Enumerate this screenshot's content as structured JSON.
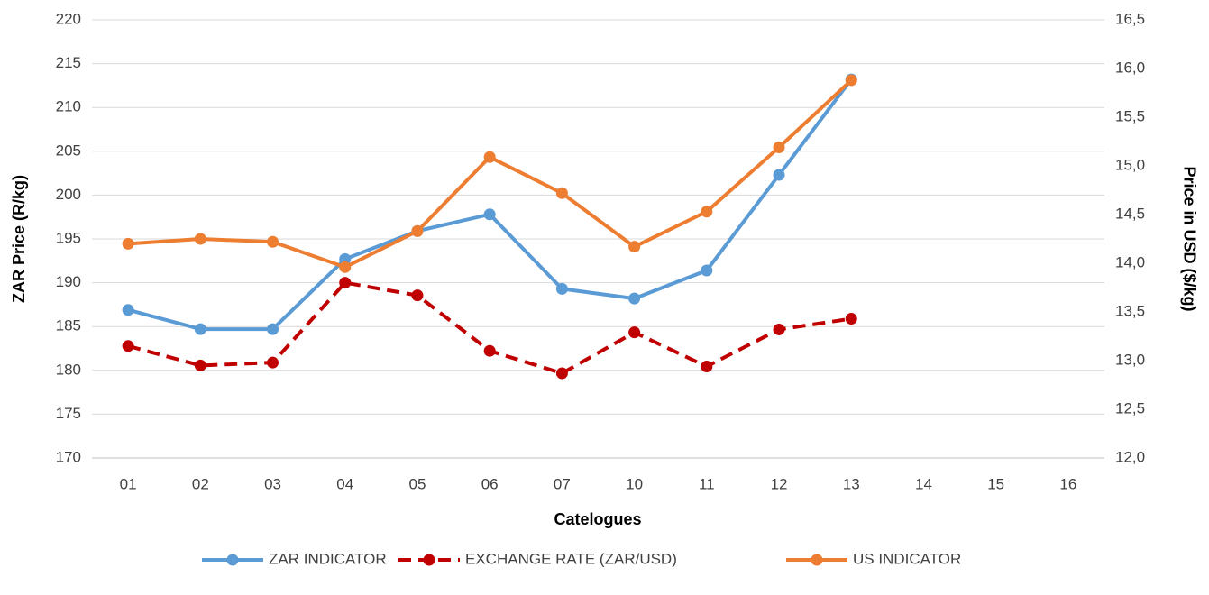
{
  "chart_data": {
    "type": "line",
    "x_label": "Catelogues",
    "y_label": "ZAR Price (R/kg)",
    "y2_label": "Price in USD ($/kg)",
    "categories": [
      "01",
      "02",
      "03",
      "04",
      "05",
      "06",
      "07",
      "10",
      "11",
      "12",
      "13",
      "14",
      "15",
      "16"
    ],
    "series": [
      {
        "name": "ZAR INDICATOR",
        "color": "#5b9bd5",
        "axis": "y",
        "dashed": false,
        "values": [
          186.9,
          184.7,
          184.7,
          192.7,
          195.9,
          197.8,
          189.3,
          188.2,
          191.4,
          202.3,
          213.2,
          null,
          null,
          null
        ]
      },
      {
        "name": "EXCHANGE RATE (ZAR/USD)",
        "color": "#c00000",
        "axis": "y2",
        "dashed": true,
        "values": [
          13.15,
          12.95,
          12.98,
          13.8,
          13.67,
          13.1,
          12.87,
          13.29,
          12.94,
          13.32,
          13.43,
          null,
          null,
          null
        ]
      },
      {
        "name": "US INDICATOR",
        "color": "#ed7d31",
        "axis": "y2",
        "dashed": false,
        "values": [
          14.2,
          14.25,
          14.22,
          13.96,
          14.33,
          15.09,
          14.72,
          14.17,
          14.53,
          15.19,
          15.88,
          null,
          null,
          null
        ]
      }
    ],
    "ylim": [
      170,
      220
    ],
    "yticks": [
      170,
      175,
      180,
      185,
      190,
      195,
      200,
      205,
      210,
      215,
      220
    ],
    "y2lim": [
      12,
      16.5
    ],
    "y2ticks": [
      {
        "value": 12,
        "label": "12,0"
      },
      {
        "value": 12.5,
        "label": "12,5"
      },
      {
        "value": 13,
        "label": "13,0"
      },
      {
        "value": 13.5,
        "label": "13,5"
      },
      {
        "value": 14,
        "label": "14,0"
      },
      {
        "value": 14.5,
        "label": "14,5"
      },
      {
        "value": 15,
        "label": "15,0"
      },
      {
        "value": 15.5,
        "label": "15,5"
      },
      {
        "value": 16,
        "label": "16,0"
      },
      {
        "value": 16.5,
        "label": "16,5"
      }
    ],
    "grid": true,
    "legend": "bottom"
  }
}
